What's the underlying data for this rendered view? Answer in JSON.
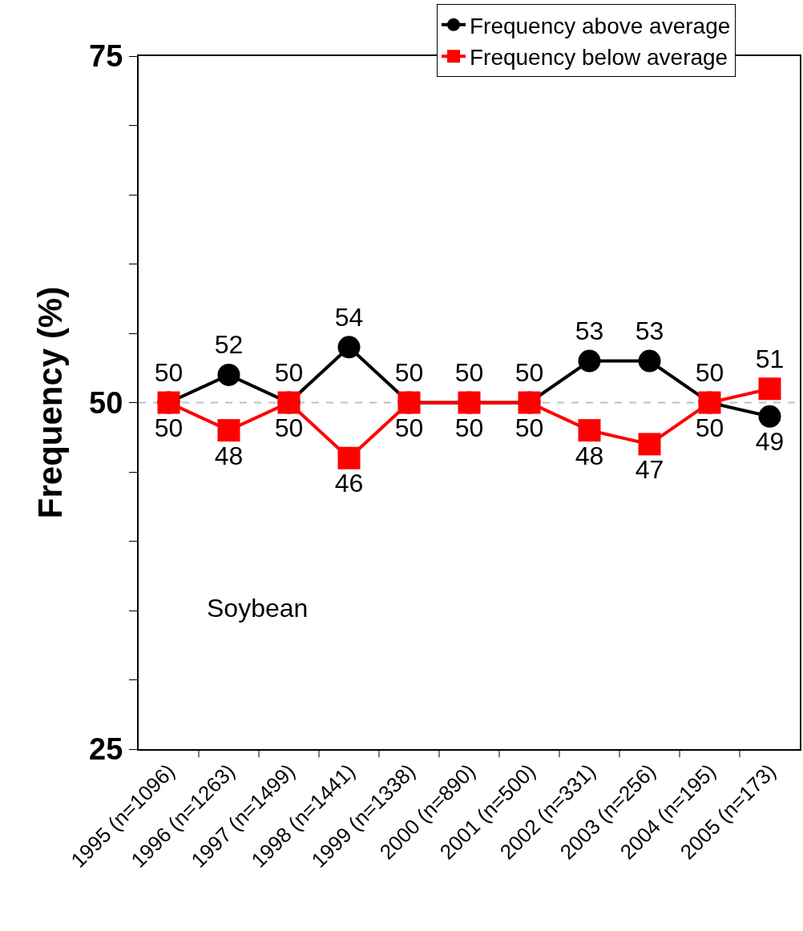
{
  "chart_data": {
    "type": "line",
    "ylabel": "Frequency (%)",
    "categories": [
      "1995 (n=1096)",
      "1996 (n=1263)",
      "1997 (n=1499)",
      "1998 (n=1441)",
      "1999 (n=1338)",
      "2000 (n=890)",
      "2001 (n=500)",
      "2002 (n=331)",
      "2003 (n=256)",
      "2004 (n=195)",
      "2005 (n=173)"
    ],
    "series": [
      {
        "name": "Frequency above average",
        "color": "#000000",
        "marker": "circle",
        "values": [
          50,
          52,
          50,
          54,
          50,
          50,
          50,
          53,
          53,
          50,
          49
        ]
      },
      {
        "name": "Frequency below average",
        "color": "#ff0000",
        "marker": "square",
        "values": [
          50,
          48,
          50,
          46,
          50,
          50,
          50,
          48,
          47,
          50,
          51
        ]
      }
    ],
    "ylim": [
      25,
      75
    ],
    "yticks": [
      25,
      {
        "value": 30,
        "label": null
      },
      {
        "value": 35,
        "label": null
      },
      {
        "value": 40,
        "label": null
      },
      {
        "value": 45,
        "label": null
      },
      50,
      {
        "value": 55,
        "label": null
      },
      {
        "value": 60,
        "label": null
      },
      {
        "value": 65,
        "label": null
      },
      {
        "value": 70,
        "label": null
      },
      75
    ],
    "ref_lines": [
      {
        "axis": "y",
        "value": 50,
        "color": "#c0c0c0",
        "line_style": "dashed"
      }
    ],
    "annotations": [
      "Soybean"
    ],
    "data_labels": true,
    "legend": "top right",
    "grid": false,
    "line_style": "solid"
  }
}
